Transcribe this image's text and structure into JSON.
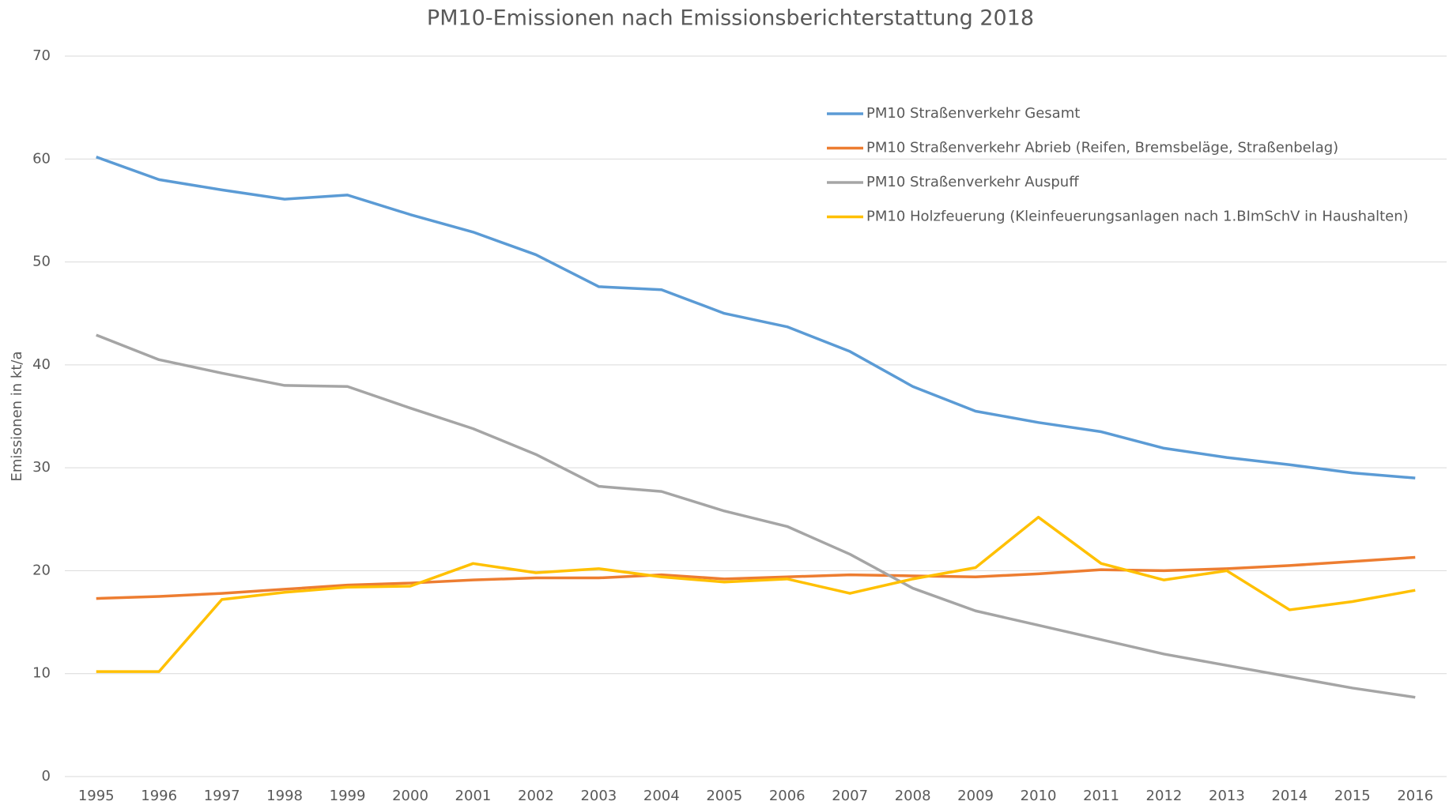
{
  "chart_data": {
    "type": "line",
    "title": "PM10-Emissionen nach Emissionsberichterstattung 2018",
    "y_label": "Emissionen in kt/a",
    "categories": [
      "1995",
      "1996",
      "1997",
      "1998",
      "1999",
      "2000",
      "2001",
      "2002",
      "2003",
      "2004",
      "2005",
      "2006",
      "2007",
      "2008",
      "2009",
      "2010",
      "2011",
      "2012",
      "2013",
      "2014",
      "2015",
      "2016"
    ],
    "series": [
      {
        "name": "PM10 Straßenverkehr Gesamt",
        "color": "#5b9bd5",
        "values": [
          60.2,
          58.0,
          57.0,
          56.1,
          56.5,
          54.6,
          52.9,
          50.7,
          47.6,
          47.3,
          45.0,
          43.7,
          41.3,
          37.9,
          35.5,
          34.4,
          33.5,
          31.9,
          31.0,
          30.3,
          29.5,
          29.0
        ]
      },
      {
        "name": "PM10 Straßenverkehr Abrieb (Reifen, Bremsbeläge, Straßenbelag)",
        "color": "#ed7d31",
        "values": [
          17.3,
          17.5,
          17.8,
          18.2,
          18.6,
          18.8,
          19.1,
          19.3,
          19.3,
          19.6,
          19.2,
          19.4,
          19.6,
          19.5,
          19.4,
          19.7,
          20.1,
          20.0,
          20.2,
          20.5,
          20.9,
          21.3
        ]
      },
      {
        "name": "PM10 Straßenverkehr Auspuff",
        "color": "#a5a5a5",
        "values": [
          42.9,
          40.5,
          39.2,
          38.0,
          37.9,
          35.8,
          33.8,
          31.3,
          28.2,
          27.7,
          25.8,
          24.3,
          21.6,
          18.3,
          16.1,
          14.7,
          13.3,
          11.9,
          10.8,
          9.7,
          8.6,
          7.7
        ]
      },
      {
        "name": "PM10 Holzfeuerung (Kleinfeuerungsanlagen nach 1.BImSchV in Haushalten)",
        "color": "#ffc000",
        "values": [
          10.2,
          10.2,
          17.2,
          17.9,
          18.4,
          18.5,
          20.7,
          19.8,
          20.2,
          19.4,
          18.9,
          19.2,
          17.8,
          19.2,
          20.3,
          25.2,
          20.7,
          19.1,
          20.0,
          16.2,
          17.0,
          18.1
        ]
      }
    ],
    "ylim": [
      0,
      70
    ],
    "yticks": [
      0,
      10,
      20,
      30,
      40,
      50,
      60,
      70
    ],
    "grid": true,
    "legend": "top-right"
  }
}
